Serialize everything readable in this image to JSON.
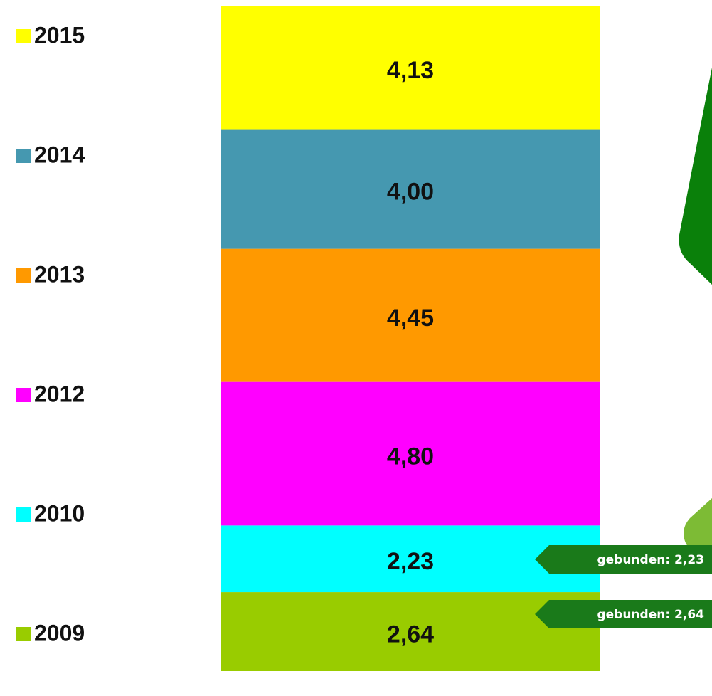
{
  "chart_data": {
    "type": "stacked-bar",
    "series": [
      {
        "name": "2009",
        "color": "#99cc00",
        "values": [
          2.64
        ],
        "value_labels": [
          "2,64"
        ]
      },
      {
        "name": "2010",
        "color": "#00ffff",
        "values": [
          2.23
        ],
        "value_labels": [
          "2,23"
        ]
      },
      {
        "name": "2012",
        "color": "#ff00ff",
        "values": [
          4.8
        ],
        "value_labels": [
          "4,80"
        ]
      },
      {
        "name": "2013",
        "color": "#ff9900",
        "values": [
          4.45
        ],
        "value_labels": [
          "4,45"
        ]
      },
      {
        "name": "2014",
        "color": "#4598b0",
        "values": [
          4.0
        ],
        "value_labels": [
          "4,00"
        ]
      },
      {
        "name": "2015",
        "color": "#ffff00",
        "values": [
          4.13
        ],
        "value_labels": [
          "4,13"
        ]
      }
    ],
    "annotations": [
      "gebunden: 2,23",
      "gebunden: 2,64"
    ]
  }
}
